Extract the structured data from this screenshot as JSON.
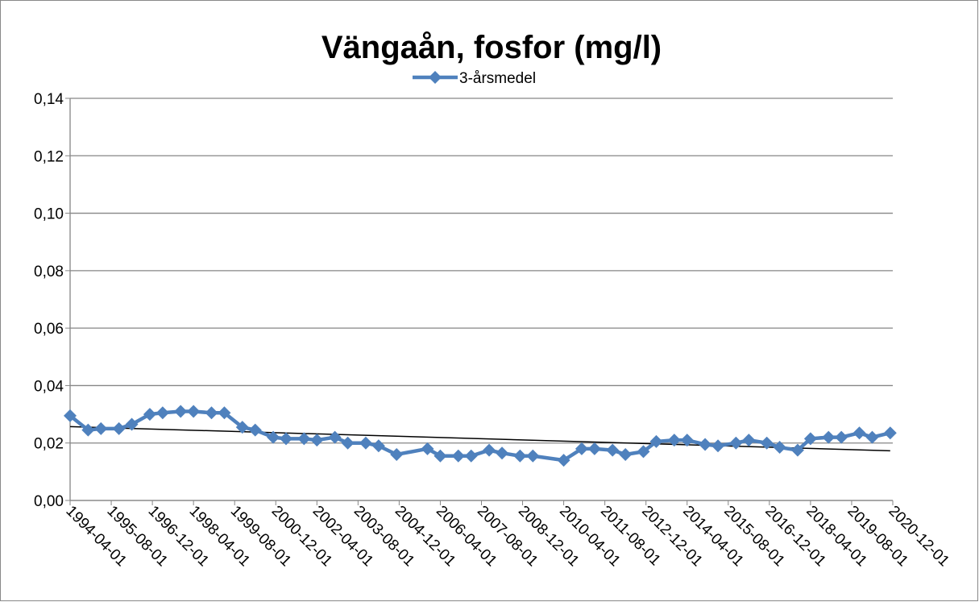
{
  "chart_data": {
    "type": "line",
    "title": "Vängaån, fosfor (mg/l)",
    "x": [
      "1994-04-01",
      "1994-11-01",
      "1995-04-01",
      "1995-11-01",
      "1996-04-01",
      "1996-11-01",
      "1997-04-01",
      "1997-11-01",
      "1998-04-01",
      "1998-11-01",
      "1999-04-01",
      "1999-11-01",
      "2000-04-01",
      "2000-11-01",
      "2001-04-01",
      "2001-11-01",
      "2002-04-01",
      "2002-11-01",
      "2003-04-01",
      "2003-11-01",
      "2004-04-01",
      "2004-11-01",
      "2005-11-01",
      "2006-04-01",
      "2006-11-01",
      "2007-04-01",
      "2007-11-01",
      "2008-04-01",
      "2008-11-01",
      "2009-04-01",
      "2010-04-01",
      "2010-11-01",
      "2011-04-01",
      "2011-11-01",
      "2012-04-01",
      "2012-11-01",
      "2013-04-01",
      "2013-11-01",
      "2014-04-01",
      "2014-11-01",
      "2015-04-01",
      "2015-11-01",
      "2016-04-01",
      "2016-11-01",
      "2017-04-01",
      "2017-11-01",
      "2018-04-01",
      "2018-11-01",
      "2019-04-01",
      "2019-11-01",
      "2020-04-01",
      "2020-11-01"
    ],
    "series": [
      {
        "name": "3-årsmedel",
        "color": "#4f81bd",
        "values": [
          0.0295,
          0.0245,
          0.025,
          0.025,
          0.0265,
          0.03,
          0.0305,
          0.031,
          0.031,
          0.0305,
          0.0305,
          0.0255,
          0.0245,
          0.022,
          0.0215,
          0.0215,
          0.021,
          0.022,
          0.02,
          0.02,
          0.019,
          0.016,
          0.018,
          0.0155,
          0.0155,
          0.0155,
          0.0175,
          0.0165,
          0.0155,
          0.0155,
          0.014,
          0.018,
          0.018,
          0.0175,
          0.016,
          0.017,
          0.0205,
          0.021,
          0.021,
          0.0195,
          0.019,
          0.02,
          0.021,
          0.02,
          0.0185,
          0.0175,
          0.0215,
          0.022,
          0.022,
          0.0235,
          0.022,
          0.0235
        ]
      }
    ],
    "trendline": {
      "color": "#000000",
      "x": [
        "1994-04-01",
        "2020-11-01"
      ],
      "values": [
        0.0257,
        0.0173
      ]
    },
    "xlim": [
      "1994-04-01",
      "2020-12-01"
    ],
    "xticks": [
      "1994-04-01",
      "1995-08-01",
      "1996-12-01",
      "1998-04-01",
      "1999-08-01",
      "2000-12-01",
      "2002-04-01",
      "2003-08-01",
      "2004-12-01",
      "2006-04-01",
      "2007-08-01",
      "2008-12-01",
      "2010-04-01",
      "2011-08-01",
      "2012-12-01",
      "2014-04-01",
      "2015-08-01",
      "2016-12-01",
      "2018-04-01",
      "2019-08-01",
      "2020-12-01"
    ],
    "ylim": [
      0,
      0.14
    ],
    "yticks": [
      {
        "value": 0,
        "label": "0,00"
      },
      {
        "value": 0.02,
        "label": "0,02"
      },
      {
        "value": 0.04,
        "label": "0,04"
      },
      {
        "value": 0.06,
        "label": "0,06"
      },
      {
        "value": 0.08,
        "label": "0,08"
      },
      {
        "value": 0.1,
        "label": "0,10"
      },
      {
        "value": 0.12,
        "label": "0,12"
      },
      {
        "value": 0.14,
        "label": "0,14"
      }
    ],
    "grid": true,
    "legend": "top"
  }
}
